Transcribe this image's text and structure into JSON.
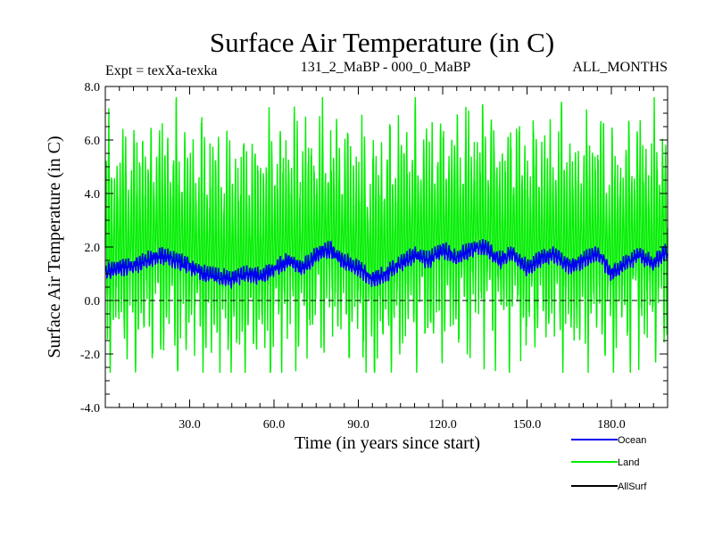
{
  "chart_data": {
    "type": "line",
    "title": "Surface Air Temperature (in C)",
    "subtitle_left": "Expt = texXa-texka",
    "subtitle_center": "131_2_MaBP - 000_0_MaBP",
    "subtitle_right": "ALL_MONTHS",
    "xlabel": "Time (in years since start)",
    "ylabel": "Surface Air Temperature (in C)",
    "xlim": [
      0,
      200
    ],
    "ylim": [
      -4.0,
      8.0
    ],
    "xticks": [
      30,
      60,
      90,
      120,
      150,
      180
    ],
    "xtick_labels": [
      "30.0",
      "60.0",
      "90.0",
      "120.0",
      "150.0",
      "180.0"
    ],
    "yticks": [
      -4,
      -2,
      0,
      2,
      4,
      6,
      8
    ],
    "ytick_labels": [
      "-4.0",
      "-2.0",
      "0.0",
      "2.0",
      "4.0",
      "6.0",
      "8.0"
    ],
    "zero_line": 0.0,
    "series": [
      {
        "name": "Land",
        "color": "#00ee00",
        "description": "monthly values, seasonal cycle between about -2.5 and 7.5",
        "mean": 2.3,
        "seasonal_amplitude": 4.0,
        "min": -2.7,
        "max": 7.6
      },
      {
        "name": "Ocean",
        "color": "#0000ee",
        "x_knots": [
          0,
          5,
          10,
          15,
          20,
          25,
          30,
          35,
          40,
          45,
          50,
          55,
          60,
          65,
          70,
          75,
          80,
          85,
          90,
          95,
          100,
          105,
          110,
          115,
          120,
          125,
          130,
          135,
          140,
          145,
          150,
          155,
          160,
          165,
          170,
          175,
          180,
          185,
          190,
          195,
          200
        ],
        "y_knots": [
          1.1,
          1.2,
          1.3,
          1.5,
          1.7,
          1.5,
          1.3,
          1.0,
          0.9,
          0.8,
          1.0,
          0.9,
          1.2,
          1.5,
          1.2,
          1.7,
          1.9,
          1.4,
          1.2,
          0.8,
          1.0,
          1.4,
          1.7,
          1.5,
          1.9,
          1.6,
          1.9,
          2.0,
          1.5,
          1.8,
          1.2,
          1.6,
          1.7,
          1.3,
          1.5,
          1.8,
          1.0,
          1.4,
          1.7,
          1.4,
          1.9
        ]
      },
      {
        "name": "AllSurf",
        "color": "#000000"
      }
    ],
    "legend": [
      {
        "label": "Ocean",
        "color": "#0000ee"
      },
      {
        "label": "Land",
        "color": "#00ee00"
      },
      {
        "label": "AllSurf",
        "color": "#000000"
      }
    ],
    "legend_position": "bottom-right"
  }
}
